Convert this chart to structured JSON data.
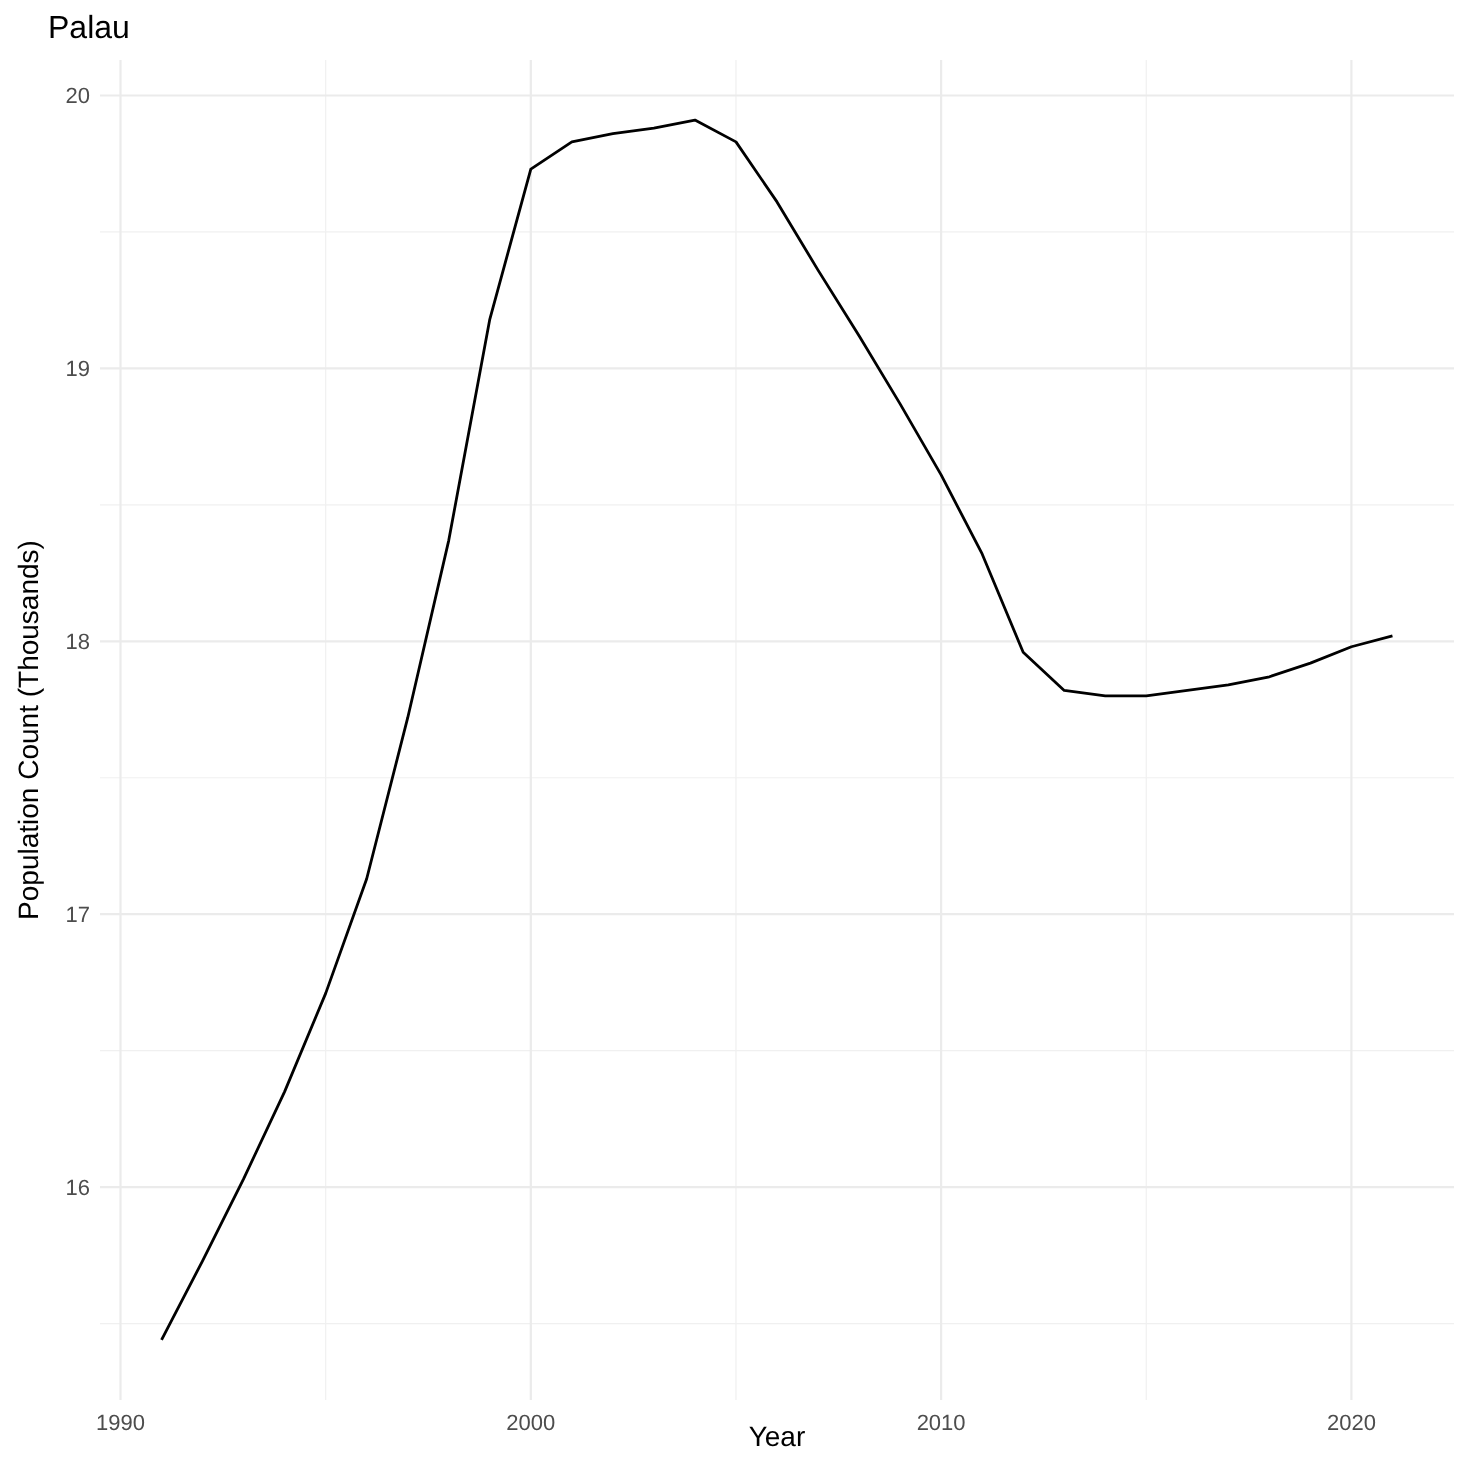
{
  "chart_data": {
    "type": "line",
    "title": "Palau",
    "xlabel": "Year",
    "ylabel": "Population Count (Thousands)",
    "x": [
      1991,
      1992,
      1993,
      1994,
      1995,
      1996,
      1997,
      1998,
      1999,
      2000,
      2001,
      2002,
      2003,
      2004,
      2005,
      2006,
      2007,
      2008,
      2009,
      2010,
      2011,
      2012,
      2013,
      2014,
      2015,
      2016,
      2017,
      2018,
      2019,
      2020,
      2021
    ],
    "series": [
      {
        "color": "#000000",
        "values": [
          15.44,
          15.73,
          16.03,
          16.35,
          16.71,
          17.13,
          17.72,
          18.37,
          19.18,
          19.73,
          19.83,
          19.86,
          19.88,
          19.91,
          19.83,
          19.61,
          19.36,
          19.12,
          18.87,
          18.61,
          18.32,
          17.96,
          17.82,
          17.8,
          17.8,
          17.82,
          17.84,
          17.87,
          17.92,
          17.98,
          18.02
        ]
      }
    ],
    "xlim": [
      1989.5,
      2022.5
    ],
    "xticks": [
      1990,
      2000,
      2010,
      2020
    ],
    "ylim": [
      15.22,
      20.13
    ],
    "yticks": [
      16,
      17,
      18,
      19,
      20
    ],
    "grid": true,
    "marker": "none",
    "line_style": "solid"
  }
}
